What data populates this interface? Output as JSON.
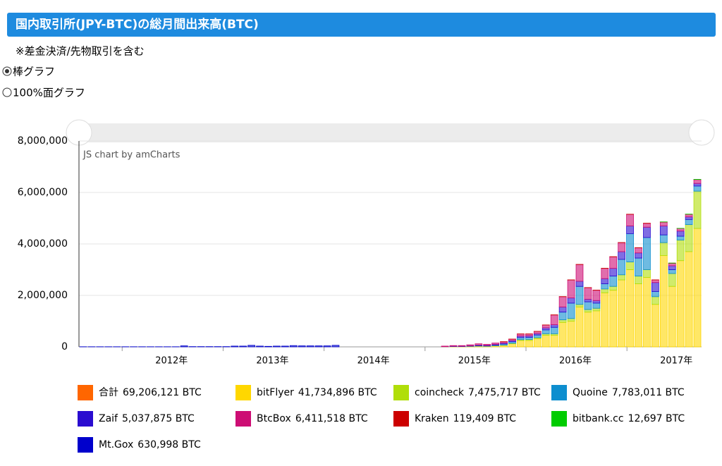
{
  "header": {
    "title": "国内取引所(JPY-BTC)の総月間出来高(BTC)",
    "note": "※差金決済/先物取引を含む",
    "options": [
      "棒グラフ",
      "100%面グラフ"
    ]
  },
  "chart_data": {
    "type": "stacked-bar",
    "credit": "JS chart by amCharts",
    "categories": [
      null,
      null,
      null,
      null,
      null,
      null,
      null,
      null,
      null,
      null,
      null,
      "2012年",
      null,
      null,
      null,
      null,
      null,
      null,
      null,
      null,
      null,
      null,
      null,
      "2013年",
      null,
      null,
      null,
      null,
      null,
      null,
      null,
      null,
      null,
      null,
      null,
      "2014年",
      null,
      null,
      null,
      null,
      null,
      null,
      null,
      null,
      null,
      null,
      null,
      "2015年",
      null,
      null,
      null,
      null,
      null,
      null,
      null,
      null,
      null,
      null,
      null,
      "2016年",
      null,
      null,
      null,
      null,
      null,
      null,
      null,
      null,
      null,
      null,
      null,
      "2017年",
      null,
      null
    ],
    "ylim": [
      0,
      8000000
    ],
    "yticks": [
      {
        "value": 0,
        "label": "0"
      },
      {
        "value": 2000000,
        "label": "2,000,000"
      },
      {
        "value": 4000000,
        "label": "4,000,000"
      },
      {
        "value": 6000000,
        "label": "6,000,000"
      },
      {
        "value": 8000000,
        "label": "8,000,000"
      }
    ],
    "grid": true,
    "grand_total": {
      "name": "合計",
      "color": "#ff6600",
      "total": 69206121,
      "total_label": "69,206,121 BTC"
    },
    "series": [
      {
        "name": "bitFlyer",
        "color": "#ffd700",
        "total": 41734896,
        "total_label": "41,734,896 BTC",
        "values": [
          0,
          0,
          0,
          0,
          0,
          0,
          0,
          0,
          0,
          0,
          0,
          0,
          0,
          0,
          0,
          0,
          0,
          0,
          0,
          0,
          0,
          0,
          0,
          0,
          0,
          0,
          0,
          0,
          0,
          0,
          0,
          0,
          0,
          0,
          0,
          0,
          0,
          0,
          0,
          0,
          0,
          0,
          0,
          5000,
          10000,
          10000,
          20000,
          30000,
          25000,
          40000,
          60000,
          120000,
          250000,
          250000,
          320000,
          450000,
          450000,
          950000,
          1000000,
          1550000,
          1350000,
          1400000,
          2100000,
          2200000,
          2600000,
          3000000,
          2450000,
          2700000,
          1650000,
          3550000,
          2350000,
          3350000,
          3700000,
          4600000
        ]
      },
      {
        "name": "coincheck",
        "color": "#b0de09",
        "total": 7475717,
        "total_label": "7,475,717 BTC",
        "values": [
          0,
          0,
          0,
          0,
          0,
          0,
          0,
          0,
          0,
          0,
          0,
          0,
          0,
          0,
          0,
          0,
          0,
          0,
          0,
          0,
          0,
          0,
          0,
          0,
          0,
          0,
          0,
          0,
          0,
          0,
          0,
          0,
          0,
          0,
          0,
          0,
          0,
          0,
          0,
          0,
          0,
          0,
          0,
          0,
          0,
          0,
          0,
          0,
          0,
          5000,
          10000,
          20000,
          30000,
          40000,
          40000,
          60000,
          60000,
          100000,
          100000,
          100000,
          100000,
          100000,
          150000,
          150000,
          200000,
          300000,
          300000,
          300000,
          300000,
          500000,
          500000,
          800000,
          1050000,
          1450000
        ]
      },
      {
        "name": "Quoine",
        "color": "#0d8ecf",
        "total": 7783011,
        "total_label": "7,783,011 BTC",
        "values": [
          0,
          0,
          0,
          0,
          0,
          0,
          0,
          0,
          0,
          0,
          0,
          0,
          0,
          0,
          0,
          0,
          0,
          0,
          0,
          0,
          0,
          0,
          0,
          0,
          0,
          0,
          0,
          0,
          0,
          0,
          0,
          0,
          0,
          0,
          0,
          0,
          0,
          0,
          0,
          0,
          0,
          0,
          0,
          0,
          5000,
          5000,
          10000,
          20000,
          15000,
          25000,
          40000,
          60000,
          80000,
          80000,
          100000,
          150000,
          250000,
          300000,
          600000,
          700000,
          300000,
          200000,
          200000,
          400000,
          600000,
          1100000,
          700000,
          1250000,
          200000,
          300000,
          150000,
          150000,
          200000,
          200000
        ]
      },
      {
        "name": "Zaif",
        "color": "#2a0cd0",
        "total": 5037875,
        "total_label": "5,037,875 BTC",
        "values": [
          0,
          0,
          0,
          0,
          0,
          0,
          0,
          0,
          0,
          0,
          0,
          0,
          0,
          0,
          0,
          0,
          0,
          0,
          0,
          0,
          0,
          0,
          0,
          0,
          0,
          0,
          0,
          0,
          0,
          0,
          0,
          0,
          0,
          0,
          0,
          0,
          0,
          0,
          0,
          0,
          0,
          0,
          0,
          5000,
          10000,
          10000,
          15000,
          20000,
          20000,
          30000,
          40000,
          50000,
          60000,
          60000,
          60000,
          80000,
          100000,
          200000,
          200000,
          200000,
          100000,
          100000,
          200000,
          300000,
          300000,
          300000,
          200000,
          400000,
          350000,
          350000,
          150000,
          200000,
          100000,
          100000
        ]
      },
      {
        "name": "BtcBox",
        "color": "#cd0d74",
        "total": 6411518,
        "total_label": "6,411,518 BTC",
        "values": [
          0,
          0,
          0,
          0,
          0,
          0,
          0,
          0,
          0,
          0,
          0,
          0,
          0,
          0,
          0,
          0,
          0,
          0,
          0,
          0,
          0,
          0,
          0,
          0,
          0,
          0,
          0,
          0,
          0,
          0,
          0,
          0,
          0,
          0,
          0,
          0,
          0,
          0,
          0,
          0,
          0,
          0,
          0,
          20000,
          25000,
          25000,
          35000,
          50000,
          40000,
          50000,
          50000,
          50000,
          80000,
          70000,
          80000,
          110000,
          380000,
          400000,
          700000,
          650000,
          450000,
          400000,
          400000,
          450000,
          350000,
          450000,
          200000,
          150000,
          100000,
          150000,
          100000,
          100000,
          100000,
          150000
        ]
      },
      {
        "name": "Kraken",
        "color": "#cc0000",
        "total": 119409,
        "total_label": "119,409 BTC",
        "values": [
          0,
          0,
          0,
          0,
          0,
          0,
          0,
          0,
          0,
          0,
          0,
          0,
          0,
          0,
          0,
          0,
          0,
          0,
          0,
          0,
          0,
          0,
          0,
          0,
          0,
          0,
          0,
          0,
          0,
          0,
          0,
          0,
          0,
          0,
          0,
          0,
          0,
          0,
          0,
          0,
          0,
          0,
          0,
          0,
          0,
          0,
          0,
          0,
          0,
          0,
          2000,
          3000,
          3000,
          3000,
          3000,
          3000,
          4000,
          4000,
          5000,
          5000,
          5000,
          5000,
          5000,
          5000,
          5000,
          5000,
          5000,
          5000,
          5000,
          5000,
          5000,
          5000,
          5000,
          5000
        ]
      },
      {
        "name": "bitbank.cc",
        "color": "#00cc00",
        "total": 12697,
        "total_label": "12,697 BTC",
        "values": [
          0,
          0,
          0,
          0,
          0,
          0,
          0,
          0,
          0,
          0,
          0,
          0,
          0,
          0,
          0,
          0,
          0,
          0,
          0,
          0,
          0,
          0,
          0,
          0,
          0,
          0,
          0,
          0,
          0,
          0,
          0,
          0,
          0,
          0,
          0,
          0,
          0,
          0,
          0,
          0,
          0,
          0,
          0,
          0,
          0,
          0,
          0,
          0,
          0,
          0,
          0,
          0,
          0,
          0,
          0,
          0,
          0,
          0,
          0,
          0,
          0,
          0,
          0,
          0,
          0,
          0,
          0,
          0,
          0,
          500,
          500,
          1000,
          3000,
          5000
        ]
      },
      {
        "name": "Mt.Gox",
        "color": "#0000cc",
        "total": 630998,
        "total_label": "630,998 BTC",
        "values": [
          5000,
          5000,
          5000,
          5000,
          5000,
          5000,
          5000,
          5000,
          5000,
          5000,
          5000,
          5000,
          40000,
          10000,
          10000,
          10000,
          10000,
          10000,
          30000,
          30000,
          60000,
          30000,
          20000,
          30000,
          30000,
          50000,
          40000,
          40000,
          40000,
          40000,
          60000,
          0,
          0,
          0,
          0,
          0,
          0,
          0,
          0,
          0,
          0,
          0,
          0,
          0,
          0,
          0,
          0,
          0,
          0,
          0,
          0,
          0,
          0,
          0,
          0,
          0,
          0,
          0,
          0,
          0,
          0,
          0,
          0,
          0,
          0,
          0,
          0,
          0,
          0,
          0,
          0,
          0,
          0,
          0
        ]
      }
    ]
  }
}
